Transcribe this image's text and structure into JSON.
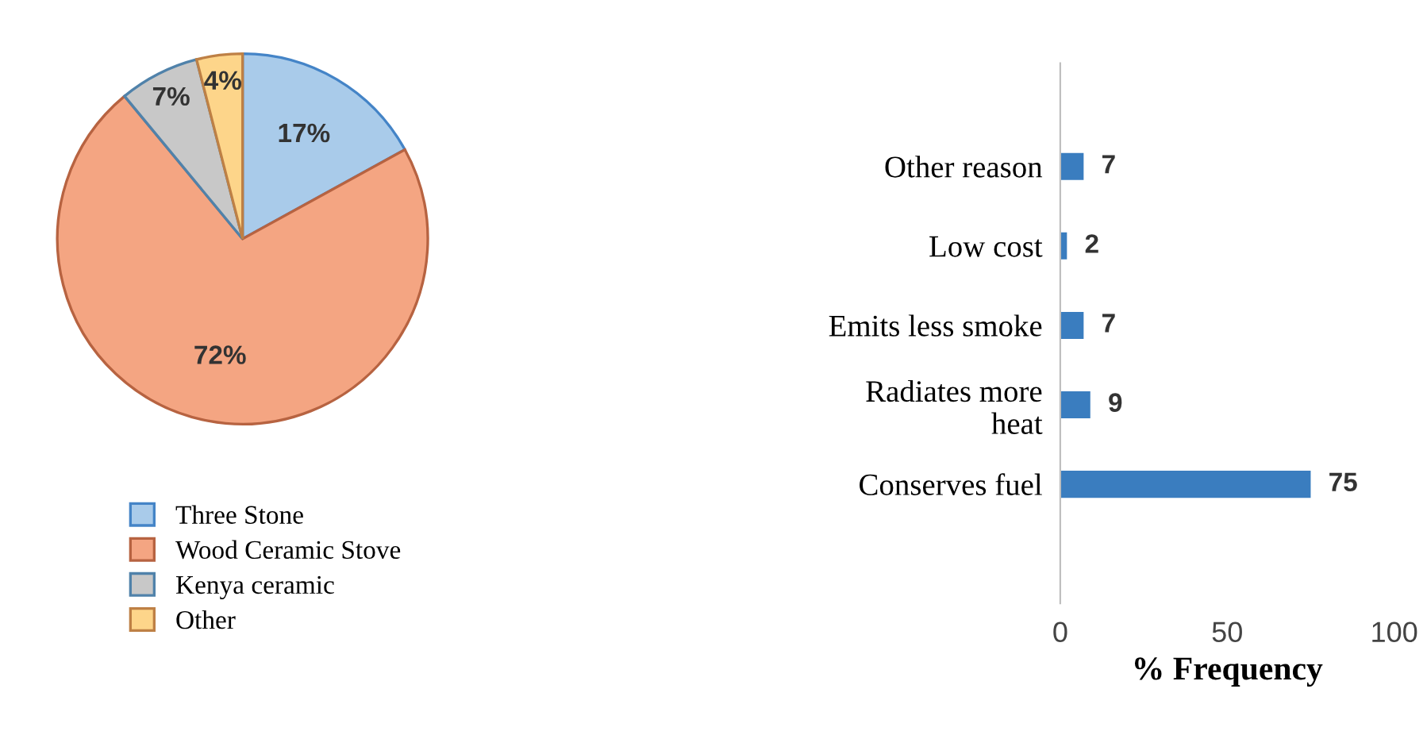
{
  "chart_data": [
    {
      "type": "pie",
      "categories": [
        "Three Stone",
        "Wood Ceramic Stove",
        "Kenya ceramic",
        "Other"
      ],
      "values": [
        17,
        72,
        7,
        4
      ],
      "colors": [
        "#a9cbea",
        "#f4a582",
        "#c8c8c8",
        "#fdd58a"
      ],
      "value_labels": [
        "17%",
        "72%",
        "7%",
        "4%"
      ],
      "legend": "bottom"
    },
    {
      "type": "bar",
      "orientation": "horizontal",
      "categories": [
        "Other reason",
        "Low cost",
        "Emits less smoke",
        "Radiates more\nheat",
        "Conserves fuel"
      ],
      "values": [
        7,
        2,
        7,
        9,
        75
      ],
      "color": "#3a7dbf",
      "xlim": [
        0,
        100
      ],
      "xticks": [
        0,
        50,
        100
      ],
      "xlabel": "% Frequency",
      "data_labels": true,
      "grid": false
    }
  ]
}
